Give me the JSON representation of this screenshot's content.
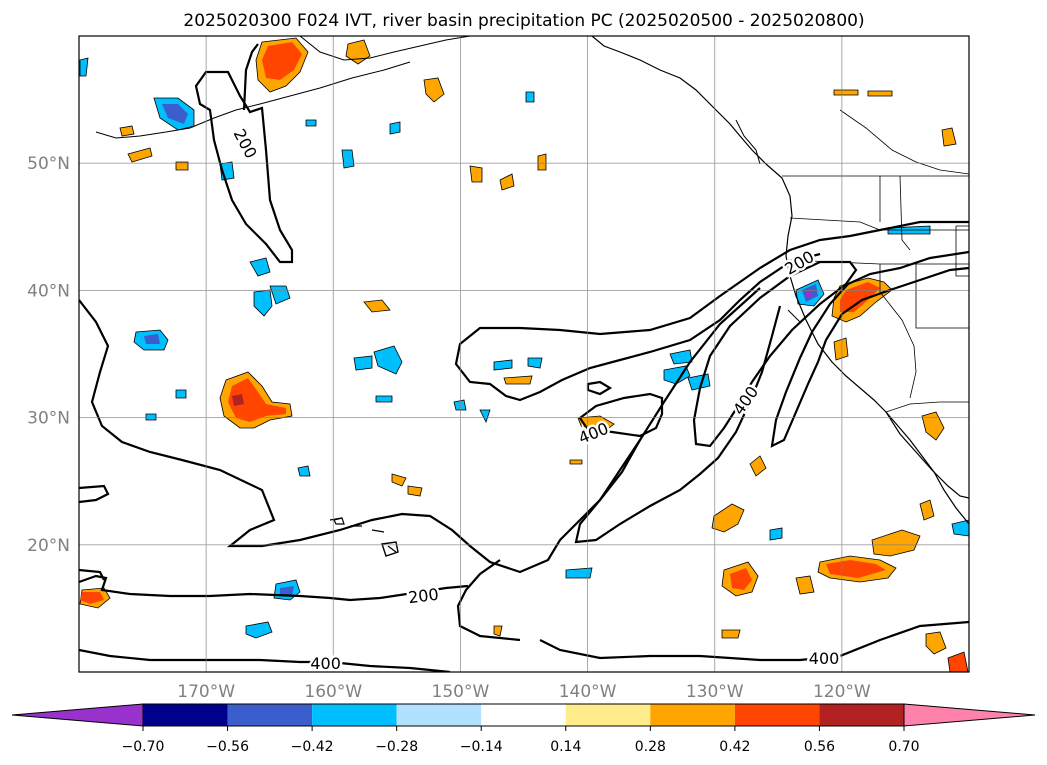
{
  "figure": {
    "title": "2025020300 F024 IVT, river basin precipitation PC (2025020500 - 2025020800)"
  },
  "map": {
    "lon_ticks": [
      {
        "label": "170°W",
        "value": -170
      },
      {
        "label": "160°W",
        "value": -160
      },
      {
        "label": "150°W",
        "value": -150
      },
      {
        "label": "140°W",
        "value": -140
      },
      {
        "label": "130°W",
        "value": -130
      },
      {
        "label": "120°W",
        "value": -120
      }
    ],
    "lat_ticks": [
      {
        "label": "50°N",
        "value": 50
      },
      {
        "label": "40°N",
        "value": 40
      },
      {
        "label": "30°N",
        "value": 30
      },
      {
        "label": "20°N",
        "value": 20
      }
    ],
    "lon_range": [
      -180,
      -110
    ],
    "lat_range": [
      10,
      60
    ],
    "grid": true,
    "contour_labels": [
      {
        "text": "200",
        "lon": -167.0,
        "lat": 51.5,
        "angle": 62
      },
      {
        "text": "200",
        "lon": -123.3,
        "lat": 42.1,
        "angle": -30
      },
      {
        "text": "400",
        "lon": -127.5,
        "lat": 31.3,
        "angle": -55
      },
      {
        "text": "400",
        "lon": -139.5,
        "lat": 28.7,
        "angle": -22
      },
      {
        "text": "200",
        "lon": -152.9,
        "lat": 15.9,
        "angle": -7
      },
      {
        "text": "400",
        "lon": -160.6,
        "lat": 10.6,
        "angle": 0
      },
      {
        "text": "400",
        "lon": -121.4,
        "lat": 11.0,
        "angle": 0
      }
    ]
  },
  "colorbar": {
    "tick_labels": [
      "−0.70",
      "−0.56",
      "−0.42",
      "−0.28",
      "−0.14",
      "0.14",
      "0.28",
      "0.42",
      "0.56",
      "0.70"
    ],
    "boundaries": [
      -0.7,
      -0.56,
      -0.42,
      -0.28,
      -0.14,
      0.14,
      0.28,
      0.42,
      0.56,
      0.7
    ],
    "colors": [
      "#9932cc",
      "#00008b",
      "#3a5fcd",
      "#00bfff",
      "#b0e2ff",
      "#ffffff",
      "#ffec8b",
      "#ffa500",
      "#ff4500",
      "#b22222",
      "#ff82ab"
    ],
    "extend": "both"
  }
}
